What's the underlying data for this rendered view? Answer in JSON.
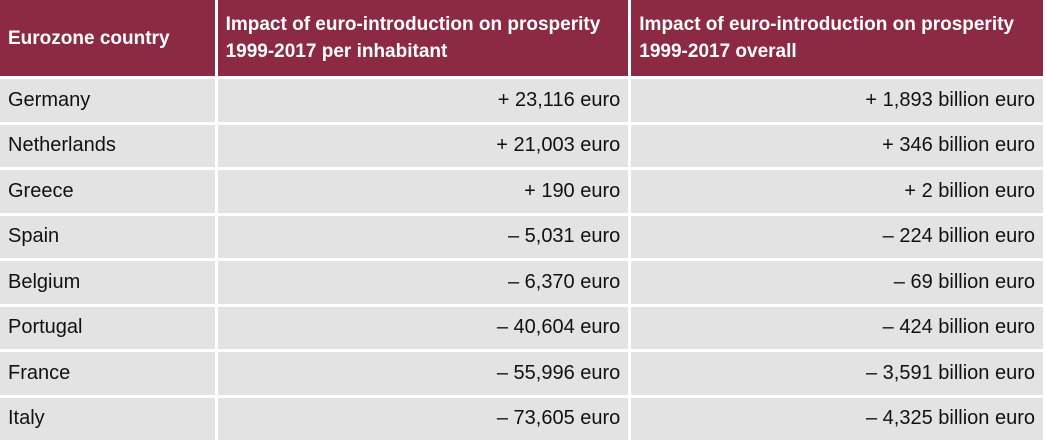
{
  "table": {
    "headers": [
      "Eurozone country",
      "Impact of euro-introduction on prosperity 1999-2017 per inhabitant",
      "Impact of euro-introduction on prosperity 1999-2017 overall"
    ],
    "rows": [
      {
        "country": "Germany",
        "per_inhabitant": "+ 23,116 euro",
        "overall": "+ 1,893 billion euro"
      },
      {
        "country": "Netherlands",
        "per_inhabitant": "+ 21,003 euro",
        "overall": "+ 346 billion euro"
      },
      {
        "country": "Greece",
        "per_inhabitant": "+ 190 euro",
        "overall": "+ 2 billion euro"
      },
      {
        "country": "Spain",
        "per_inhabitant": "– 5,031 euro",
        "overall": "– 224 billion euro"
      },
      {
        "country": "Belgium",
        "per_inhabitant": "– 6,370 euro",
        "overall": "– 69 billion euro"
      },
      {
        "country": "Portugal",
        "per_inhabitant": "– 40,604 euro",
        "overall": "– 424 billion euro"
      },
      {
        "country": "France",
        "per_inhabitant": "– 55,996 euro",
        "overall": "– 3,591 billion euro"
      },
      {
        "country": "Italy",
        "per_inhabitant": "– 73,605 euro",
        "overall": "– 4,325 billion euro"
      }
    ]
  },
  "colors": {
    "header_background": "#8c2a43",
    "header_text": "#ffffff",
    "cell_background": "#e3e3e3",
    "cell_text": "#111111"
  }
}
